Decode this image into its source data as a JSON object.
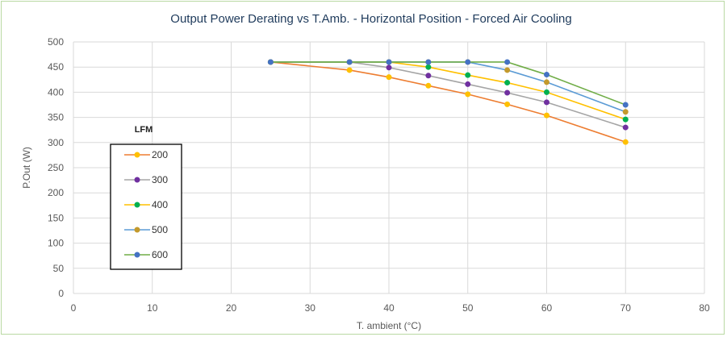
{
  "chart_data": {
    "type": "line",
    "title": "Output Power Derating vs T.Amb.   -   Horizontal Position   -   Forced Air Cooling",
    "xlabel": "T. ambient (°C)",
    "ylabel": "P.Out (W)",
    "xlim": [
      0,
      80
    ],
    "ylim": [
      0,
      500
    ],
    "xticks": [
      0,
      10,
      20,
      30,
      40,
      50,
      60,
      70,
      80
    ],
    "yticks": [
      0,
      50,
      100,
      150,
      200,
      250,
      300,
      350,
      400,
      450,
      500
    ],
    "grid": "horizontal and vertical",
    "legend": {
      "title": "LFM",
      "placement": "left"
    },
    "series": [
      {
        "name": "200",
        "line_color": "#ed7d31",
        "marker_color": "#ffc000",
        "x": [
          25,
          35,
          40,
          45,
          50,
          55,
          60,
          70
        ],
        "y": [
          460,
          444,
          430,
          413,
          396,
          376,
          354,
          301
        ]
      },
      {
        "name": "300",
        "line_color": "#a5a5a5",
        "marker_color": "#7030a0",
        "x": [
          25,
          35,
          40,
          45,
          50,
          55,
          60,
          70
        ],
        "y": [
          460,
          460,
          449,
          433,
          416,
          399,
          380,
          330
        ]
      },
      {
        "name": "400",
        "line_color": "#ffc000",
        "marker_color": "#00b050",
        "x": [
          25,
          35,
          40,
          45,
          50,
          55,
          60,
          70
        ],
        "y": [
          460,
          460,
          460,
          450,
          434,
          419,
          400,
          346
        ]
      },
      {
        "name": "500",
        "line_color": "#5b9bd5",
        "marker_color": "#c49a2c",
        "x": [
          25,
          35,
          40,
          45,
          50,
          55,
          60,
          70
        ],
        "y": [
          460,
          460,
          460,
          460,
          460,
          444,
          420,
          361
        ]
      },
      {
        "name": "600",
        "line_color": "#70ad47",
        "marker_color": "#4472c4",
        "x": [
          25,
          35,
          40,
          45,
          50,
          55,
          60,
          70
        ],
        "y": [
          460,
          460,
          460,
          460,
          460,
          460,
          435,
          375
        ]
      }
    ]
  }
}
